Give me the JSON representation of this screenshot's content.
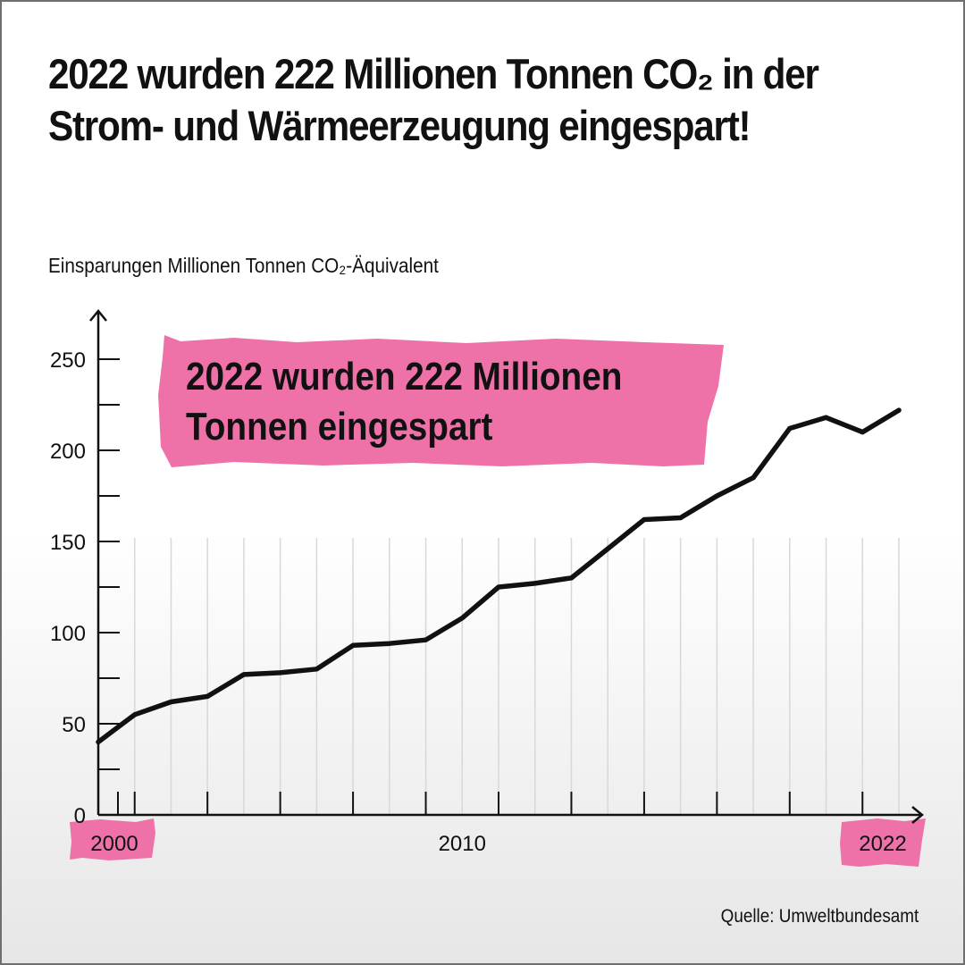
{
  "title": "2022 wurden 222 Millionen Tonnen CO₂ in der Strom- und Wärmeerzeugung eingespart!",
  "unit_label": "Einsparungen Millionen Tonnen CO₂-Äquivalent",
  "source": "Quelle: Umweltbundesamt",
  "colors": {
    "accent": "#ee72a8",
    "line": "#111111",
    "text": "#111111"
  },
  "callout": {
    "line1": "2022 wurden 222 Millionen",
    "line2": "Tonnen eingespart"
  },
  "chart_data": {
    "type": "line",
    "title": "2022 wurden 222 Millionen Tonnen CO₂ in der Strom- und Wärmeerzeugung eingespart!",
    "ylabel": "Einsparungen Millionen Tonnen CO₂-Äquivalent",
    "xlabel": "",
    "x": [
      2000,
      2001,
      2002,
      2003,
      2004,
      2005,
      2006,
      2007,
      2008,
      2009,
      2010,
      2011,
      2012,
      2013,
      2014,
      2015,
      2016,
      2017,
      2018,
      2019,
      2020,
      2021,
      2022
    ],
    "series": [
      {
        "values": [
          40,
          55,
          62,
          65,
          77,
          78,
          80,
          93,
          94,
          96,
          108,
          125,
          127,
          130,
          146,
          162,
          163,
          175,
          185,
          212,
          218,
          210,
          222
        ]
      }
    ],
    "xlim": [
      2000,
      2022
    ],
    "ylim": [
      0,
      250
    ],
    "x_tick_labels": [
      "2000",
      "2010",
      "2022"
    ],
    "y_tick_labels": [
      "0",
      "50",
      "100",
      "150",
      "200",
      "250"
    ],
    "grid": false,
    "legend": "none"
  }
}
